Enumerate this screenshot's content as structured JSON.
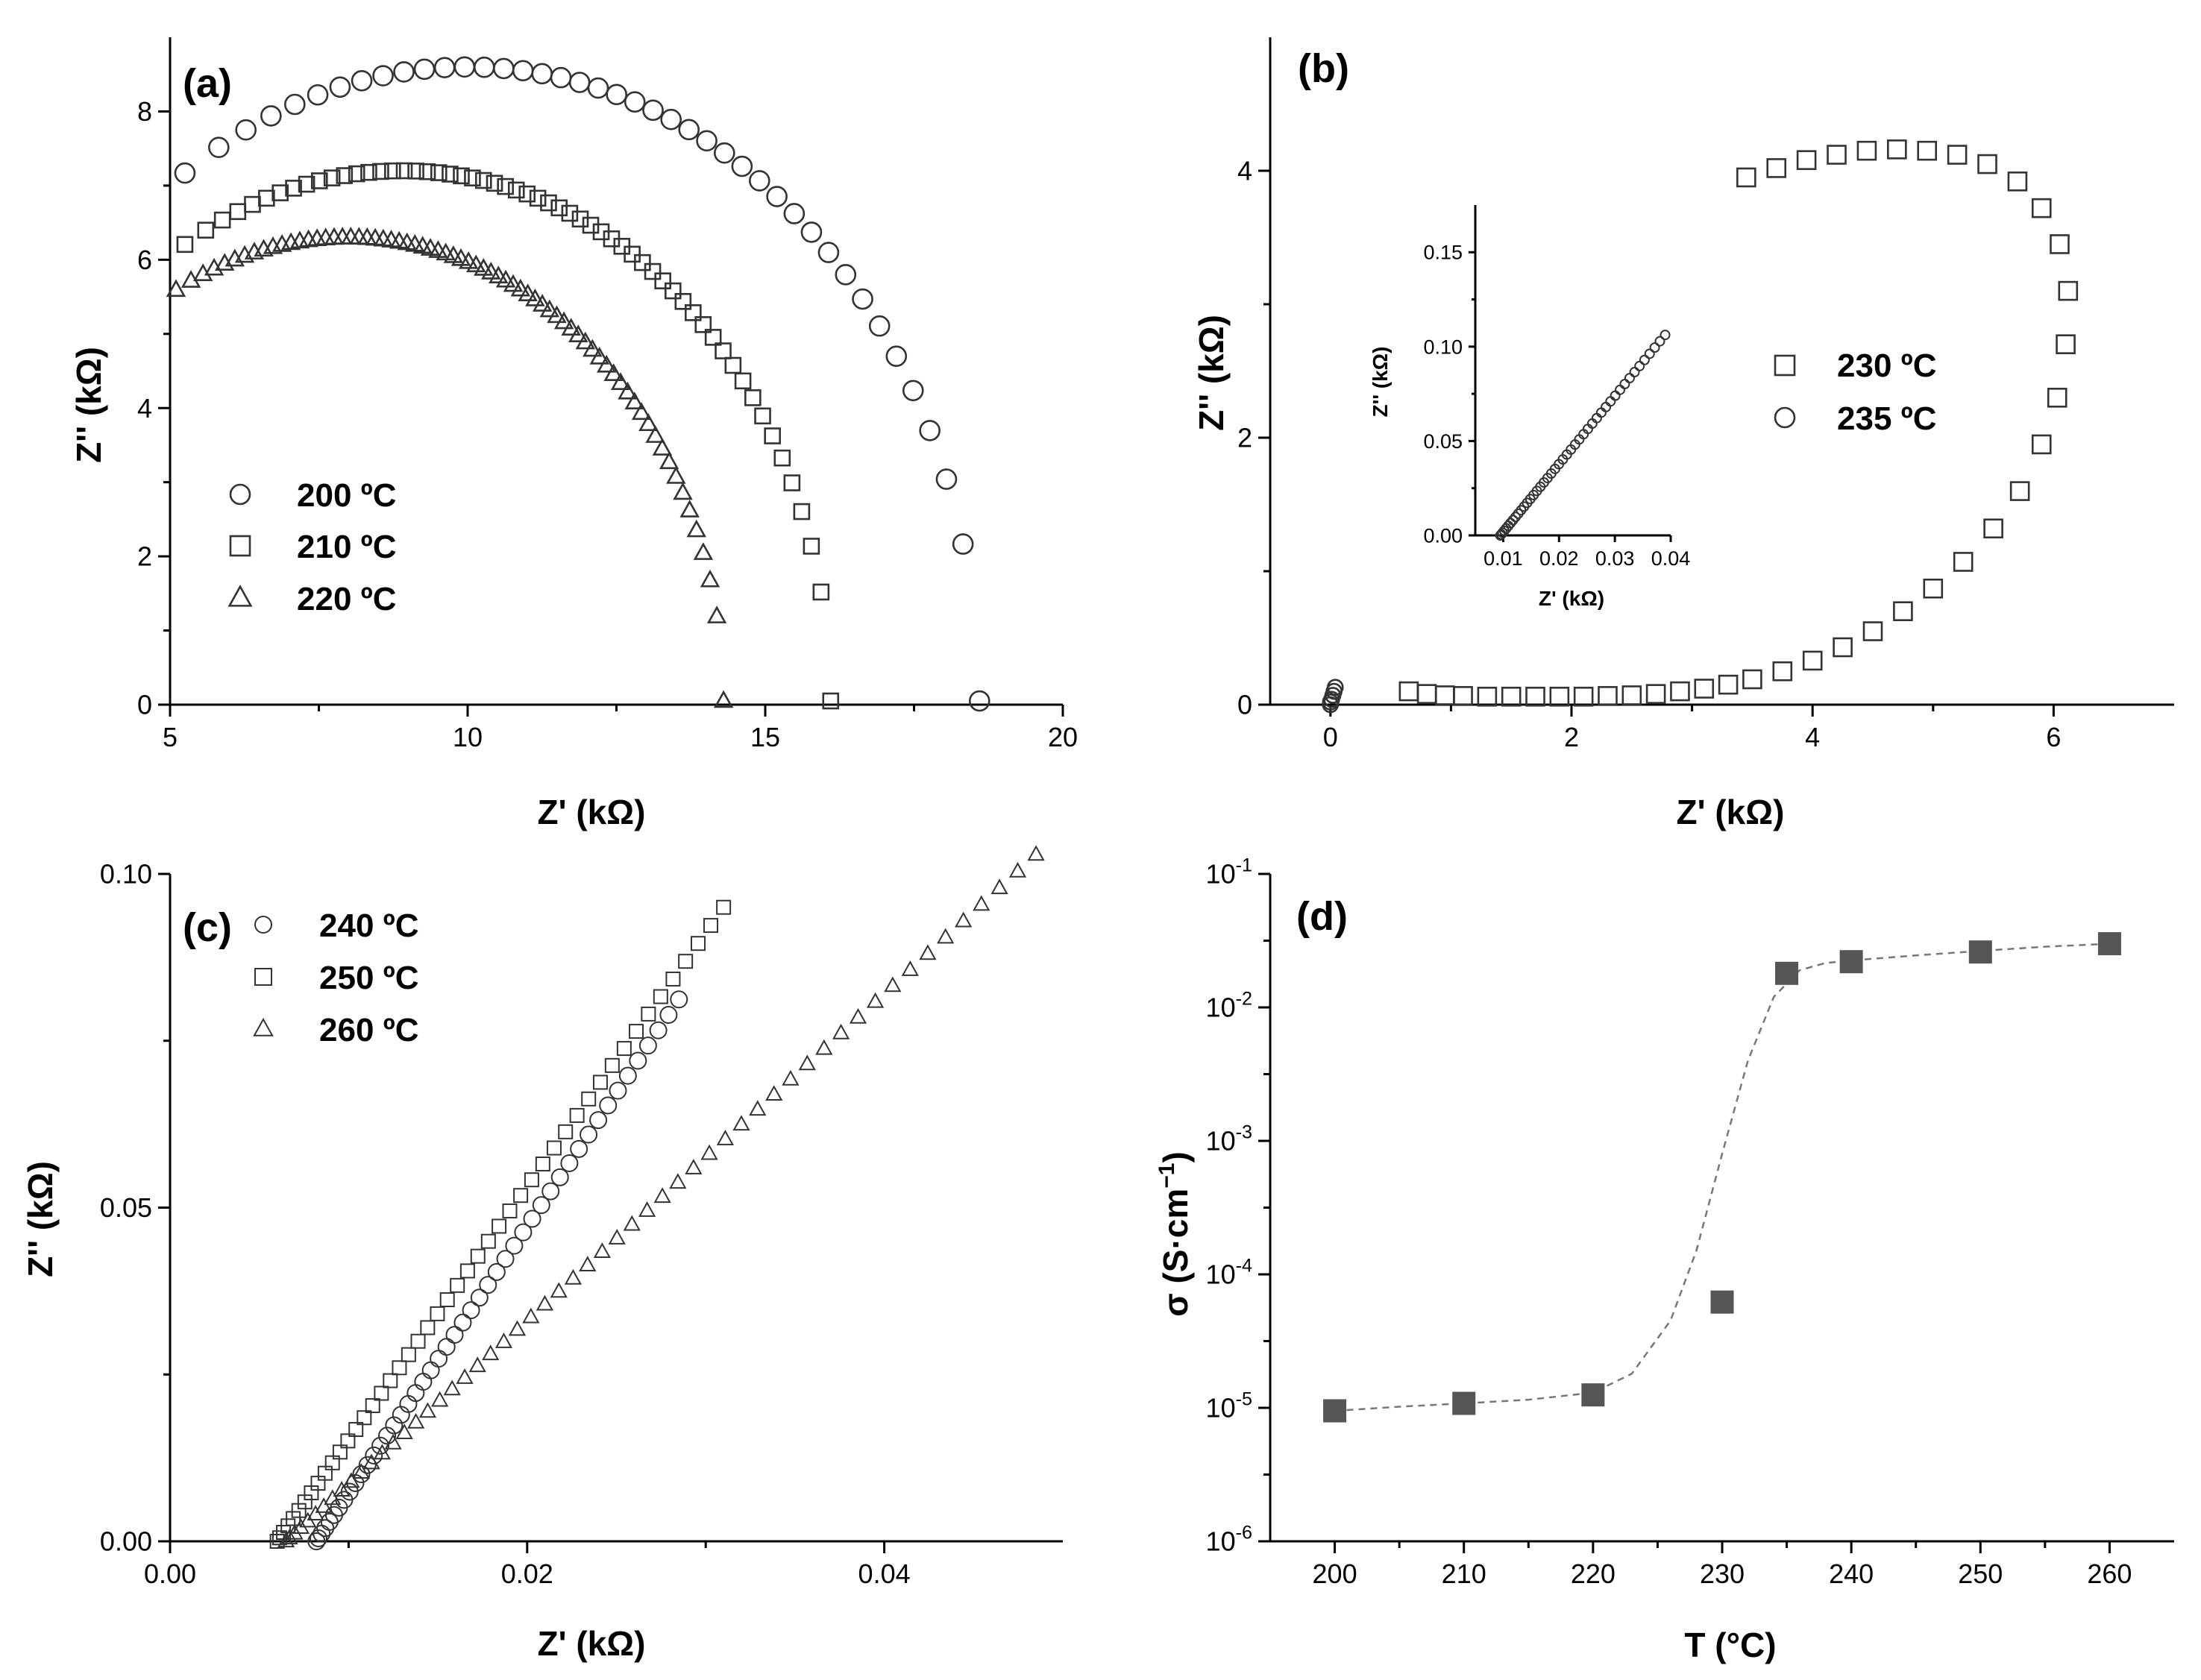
{
  "chart_data": [
    {
      "panel": "(a)",
      "type": "scatter",
      "xlabel": "Z' (kΩ)",
      "ylabel": "Z'' (kΩ)",
      "xlim": [
        5,
        20
      ],
      "ylim": [
        0,
        9
      ],
      "xticks": [
        5,
        10,
        15,
        20
      ],
      "xtick_labels": [
        "5",
        "10",
        "15",
        "20"
      ],
      "yticks": [
        0,
        2,
        4,
        6,
        8
      ],
      "ytick_labels": [
        "0",
        "2",
        "4",
        "6",
        "8"
      ],
      "legend_position": "left-middle",
      "series": [
        {
          "name": "200 ºC",
          "marker": "circle",
          "center": 10.0,
          "radius": 8.6,
          "x_start": 5.25,
          "x_end": 18.6
        },
        {
          "name": "210 ºC",
          "marker": "square",
          "center": 8.9,
          "radius": 7.2,
          "x_start": 5.25,
          "x_end": 16.1
        },
        {
          "name": "220 ºC",
          "marker": "triangle",
          "center": 8.0,
          "radius": 6.3,
          "x_start": 5.1,
          "x_end": 14.3
        }
      ]
    },
    {
      "panel": "(b)",
      "type": "scatter",
      "xlabel": "Z' (kΩ)",
      "ylabel": "Z'' (kΩ)",
      "xlim": [
        -0.5,
        7
      ],
      "ylim": [
        0,
        5
      ],
      "xticks": [
        0,
        2,
        4,
        6
      ],
      "xtick_labels": [
        "0",
        "2",
        "4",
        "6"
      ],
      "yticks": [
        0,
        2,
        4
      ],
      "ytick_labels": [
        "0",
        "2",
        "4"
      ],
      "legend_position": "right-middle",
      "series": [
        {
          "name": "230 ºC",
          "marker": "square",
          "points": [
            [
              0.65,
              0.1
            ],
            [
              0.8,
              0.08
            ],
            [
              0.95,
              0.07
            ],
            [
              1.1,
              0.065
            ],
            [
              1.3,
              0.06
            ],
            [
              1.5,
              0.06
            ],
            [
              1.7,
              0.06
            ],
            [
              1.9,
              0.06
            ],
            [
              2.1,
              0.06
            ],
            [
              2.3,
              0.065
            ],
            [
              2.5,
              0.07
            ],
            [
              2.7,
              0.08
            ],
            [
              2.9,
              0.1
            ],
            [
              3.1,
              0.12
            ],
            [
              3.3,
              0.15
            ],
            [
              3.5,
              0.19
            ],
            [
              3.75,
              0.25
            ],
            [
              4.0,
              0.33
            ],
            [
              4.25,
              0.43
            ],
            [
              4.5,
              0.55
            ],
            [
              4.75,
              0.7
            ],
            [
              5.0,
              0.87
            ],
            [
              5.25,
              1.07
            ],
            [
              5.5,
              1.32
            ],
            [
              5.72,
              1.6
            ],
            [
              5.9,
              1.95
            ],
            [
              6.03,
              2.3
            ],
            [
              6.1,
              2.7
            ],
            [
              6.12,
              3.1
            ],
            [
              6.05,
              3.45
            ],
            [
              5.9,
              3.72
            ],
            [
              5.7,
              3.92
            ],
            [
              5.45,
              4.05
            ],
            [
              5.2,
              4.12
            ],
            [
              4.95,
              4.15
            ],
            [
              4.7,
              4.16
            ],
            [
              4.45,
              4.15
            ],
            [
              4.2,
              4.12
            ],
            [
              3.95,
              4.08
            ],
            [
              3.7,
              4.02
            ],
            [
              3.45,
              3.95
            ]
          ]
        },
        {
          "name": "235 ºC",
          "marker": "circle",
          "points": [
            [
              0.0,
              0.0
            ],
            [
              0.0,
              0.02
            ],
            [
              0.01,
              0.04
            ],
            [
              0.02,
              0.07
            ],
            [
              0.03,
              0.1
            ],
            [
              0.04,
              0.13
            ]
          ]
        }
      ],
      "inset": {
        "xlabel": "Z' (kΩ)",
        "ylabel": "Z'' (kΩ)",
        "xlim": [
          0.005,
          0.04
        ],
        "ylim": [
          0,
          0.175
        ],
        "xticks": [
          0.01,
          0.02,
          0.03,
          0.04
        ],
        "xtick_labels": [
          "0.01",
          "0.02",
          "0.03",
          "0.04"
        ],
        "yticks": [
          0,
          0.05,
          0.1,
          0.15
        ],
        "ytick_labels": [
          "0.00",
          "0.05",
          "0.10",
          "0.15"
        ],
        "series": [
          {
            "name": "235 ºC",
            "marker": "circle",
            "x_start": 0.0095,
            "slope": 3.6,
            "x_end": 0.039
          }
        ]
      }
    },
    {
      "panel": "(c)",
      "type": "scatter",
      "xlabel": "Z' (kΩ)",
      "ylabel": "Z'' (kΩ)",
      "xlim": [
        0,
        0.05
      ],
      "ylim": [
        0,
        0.1
      ],
      "xticks": [
        0,
        0.02,
        0.04
      ],
      "xtick_labels": [
        "0.00",
        "0.02",
        "0.04"
      ],
      "yticks": [
        0,
        0.05,
        0.1
      ],
      "ytick_labels": [
        "0.00",
        "0.05",
        "0.10"
      ],
      "legend_position": "top-left",
      "series": [
        {
          "name": "240 ºC",
          "marker": "circle",
          "x_start": 0.0082,
          "slope": 4.0,
          "x_end": 0.0285
        },
        {
          "name": "250 ºC",
          "marker": "square",
          "x_start": 0.006,
          "slope": 3.8,
          "x_end": 0.031
        },
        {
          "name": "260 ºC",
          "marker": "triangle",
          "x_start": 0.0065,
          "slope": 2.45,
          "x_end": 0.0485
        }
      ]
    },
    {
      "panel": "(d)",
      "type": "scatter",
      "xlabel": "T (°C)",
      "ylabel": "σ (S·cm⁻¹)",
      "ylabel_main": "σ (S·cm",
      "ylabel_sup": "−1",
      "ylabel_close": ")",
      "xlim": [
        195,
        265
      ],
      "ylim": [
        1e-06,
        0.1
      ],
      "yscale": "log",
      "xticks": [
        200,
        210,
        220,
        230,
        240,
        250,
        260
      ],
      "xtick_labels": [
        "200",
        "210",
        "220",
        "230",
        "240",
        "250",
        "260"
      ],
      "ytick_exponents": [
        -6,
        -5,
        -4,
        -3,
        -2,
        -1
      ],
      "ytick_base": "10",
      "series": [
        {
          "name": "σ",
          "marker": "filled-square",
          "x": [
            200,
            210,
            220,
            230,
            235,
            240,
            250,
            260
          ],
          "y": [
            9.5e-06,
            1.08e-05,
            1.25e-05,
            6.2e-05,
            0.018,
            0.022,
            0.026,
            0.03
          ]
        }
      ],
      "fit": {
        "style": "dashed",
        "x": [
          200,
          205,
          210,
          215,
          220,
          223,
          226,
          228,
          230,
          232,
          234,
          236,
          238,
          240,
          245,
          250,
          255,
          260
        ],
        "y": [
          9.5e-06,
          1.02e-05,
          1.08e-05,
          1.15e-05,
          1.3e-05,
          1.8e-05,
          4.5e-05,
          0.00015,
          0.0008,
          0.004,
          0.012,
          0.019,
          0.0215,
          0.0225,
          0.0245,
          0.0265,
          0.0285,
          0.03
        ]
      }
    }
  ]
}
